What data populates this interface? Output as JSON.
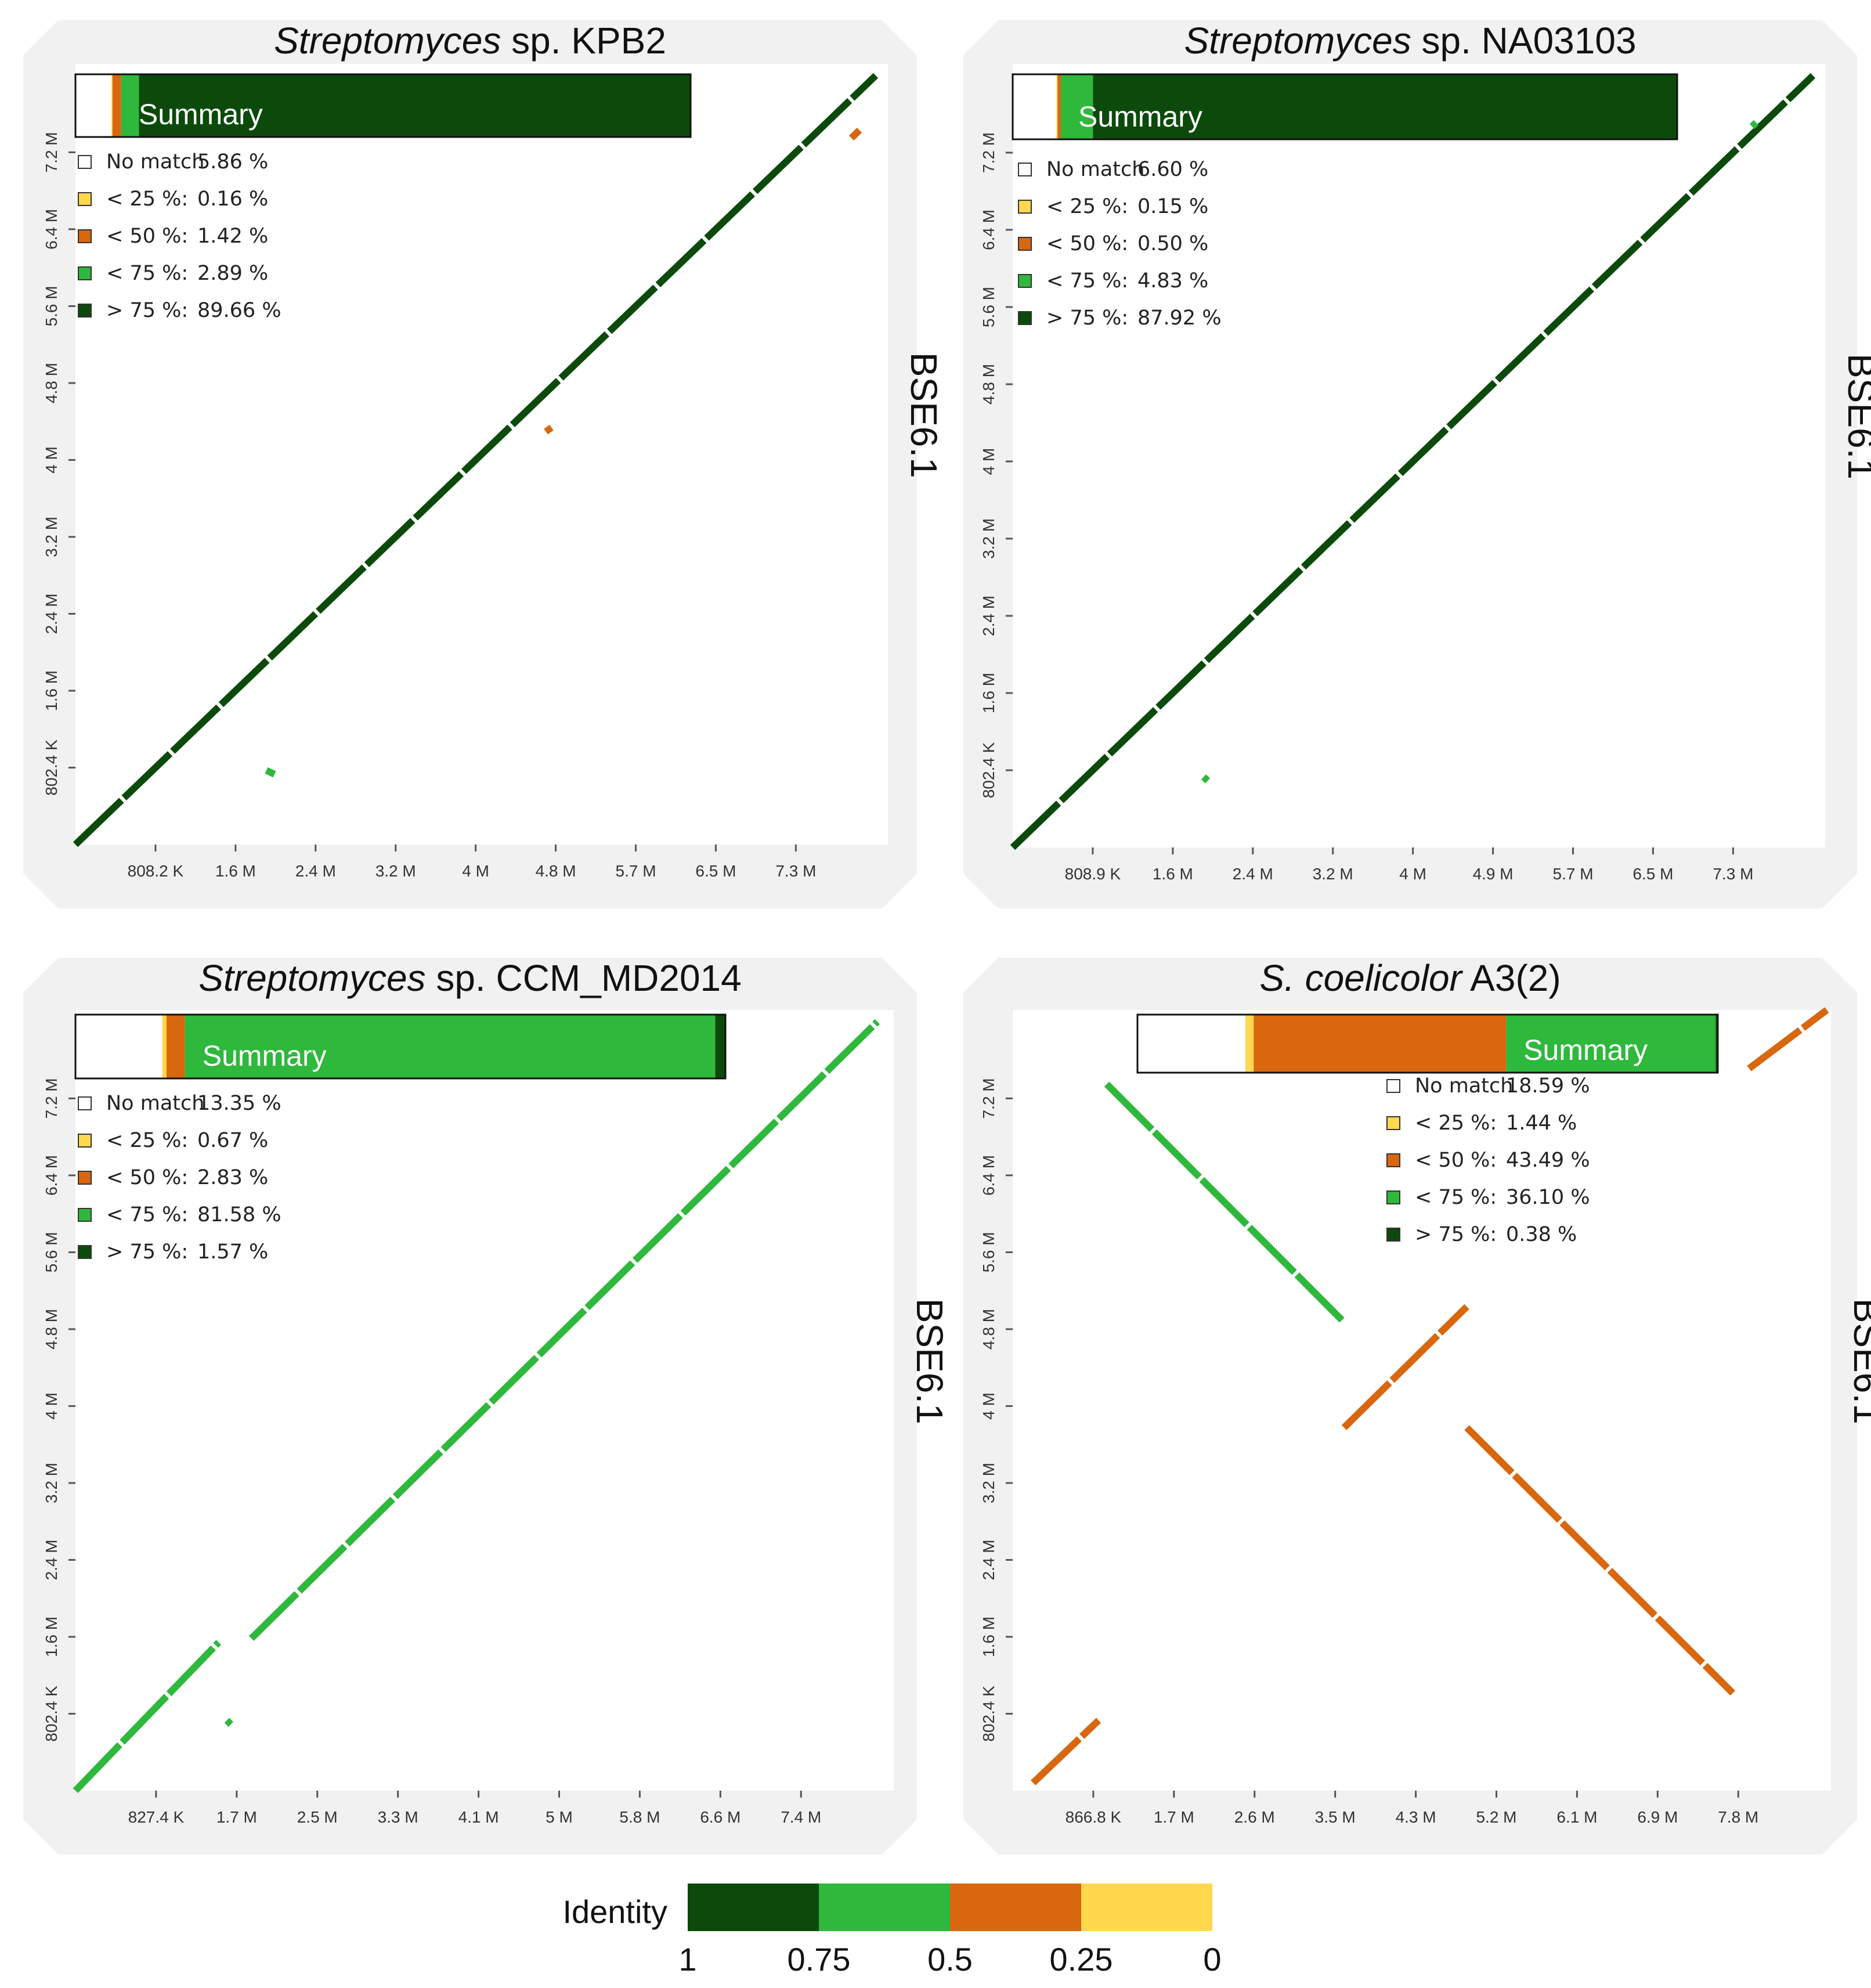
{
  "chart_data": [
    {
      "type": "dotplot",
      "title": "Streptomyces sp. KPB2",
      "title_italic": "Streptomyces",
      "title_rest": " sp. KPB2",
      "y_axis_label": "BSE6.1",
      "x_ticks": [
        "808.2 K",
        "1.6 M",
        "2.4 M",
        "3.2 M",
        "4 M",
        "4.8 M",
        "5.7 M",
        "6.5 M",
        "7.3 M"
      ],
      "y_ticks": [
        "802.4 K",
        "1.6 M",
        "2.4 M",
        "3.2 M",
        "4 M",
        "4.8 M",
        "5.6 M",
        "6.4 M",
        "7.2 M"
      ],
      "summary_label": "Summary",
      "summary": [
        {
          "label": "No match",
          "value": "5.86 %",
          "pct": 5.86
        },
        {
          "label": "< 25 %:",
          "value": "0.16 %",
          "pct": 0.16
        },
        {
          "label": "< 50 %:",
          "value": "1.42 %",
          "pct": 1.42
        },
        {
          "label": "< 75 %:",
          "value": "2.89 %",
          "pct": 2.89
        },
        {
          "label": "> 75 %:",
          "value": "89.66 %",
          "pct": 89.66
        }
      ],
      "segments": [
        {
          "x0": 0.0,
          "y0": 0.0,
          "x1": 0.985,
          "y1": 0.985,
          "identity": "> 75 %"
        },
        {
          "x0": 0.955,
          "y0": 0.905,
          "x1": 0.965,
          "y1": 0.915,
          "identity": "< 50 %"
        },
        {
          "x0": 0.58,
          "y0": 0.535,
          "x1": 0.585,
          "y1": 0.528,
          "identity": "< 50 %"
        },
        {
          "x0": 0.235,
          "y0": 0.095,
          "x1": 0.245,
          "y1": 0.09,
          "identity": "< 75 %"
        }
      ]
    },
    {
      "type": "dotplot",
      "title": "Streptomyces sp. NA03103",
      "title_italic": "Streptomyces",
      "title_rest": " sp. NA03103",
      "y_axis_label": "BSE6.1",
      "x_ticks": [
        "808.9 K",
        "1.6 M",
        "2.4 M",
        "3.2 M",
        "4 M",
        "4.9 M",
        "5.7 M",
        "6.5 M",
        "7.3 M"
      ],
      "y_ticks": [
        "802.4 K",
        "1.6 M",
        "2.4 M",
        "3.2 M",
        "4 M",
        "4.8 M",
        "5.6 M",
        "6.4 M",
        "7.2 M"
      ],
      "summary_label": "Summary",
      "summary": [
        {
          "label": "No match",
          "value": "6.60 %",
          "pct": 6.6
        },
        {
          "label": "< 25 %:",
          "value": "0.15 %",
          "pct": 0.15
        },
        {
          "label": "< 50 %:",
          "value": "0.50 %",
          "pct": 0.5
        },
        {
          "label": "< 75 %:",
          "value": "4.83 %",
          "pct": 4.83
        },
        {
          "label": "> 75 %:",
          "value": "87.92 %",
          "pct": 87.92
        }
      ],
      "segments": [
        {
          "x0": 0.0,
          "y0": 0.0,
          "x1": 0.985,
          "y1": 0.985,
          "identity": "> 75 %"
        },
        {
          "x0": 0.91,
          "y0": 0.92,
          "x1": 0.915,
          "y1": 0.925,
          "identity": "< 75 %"
        },
        {
          "x0": 0.235,
          "y0": 0.09,
          "x1": 0.24,
          "y1": 0.085,
          "identity": "< 75 %"
        }
      ]
    },
    {
      "type": "dotplot",
      "title": "Streptomyces sp. CCM_MD2014",
      "title_italic": "Streptomyces",
      "title_rest": " sp. CCM_MD2014",
      "y_axis_label": "BSE6.1",
      "x_ticks": [
        "827.4 K",
        "1.7 M",
        "2.5 M",
        "3.3 M",
        "4.1 M",
        "5 M",
        "5.8 M",
        "6.6 M",
        "7.4 M"
      ],
      "y_ticks": [
        "802.4 K",
        "1.6 M",
        "2.4 M",
        "3.2 M",
        "4 M",
        "4.8 M",
        "5.6 M",
        "6.4 M",
        "7.2 M"
      ],
      "summary_label": "Summary",
      "summary": [
        {
          "label": "No match",
          "value": "13.35 %",
          "pct": 13.35
        },
        {
          "label": "< 25 %:",
          "value": "0.67 %",
          "pct": 0.67
        },
        {
          "label": "< 50 %:",
          "value": "2.83 %",
          "pct": 2.83
        },
        {
          "label": "< 75 %:",
          "value": "81.58 %",
          "pct": 81.58
        },
        {
          "label": "> 75 %:",
          "value": "1.57 %",
          "pct": 1.57
        }
      ],
      "segments": [
        {
          "x0": 0.0,
          "y0": 0.0,
          "x1": 0.175,
          "y1": 0.19,
          "identity": "< 75 %"
        },
        {
          "x0": 0.215,
          "y0": 0.195,
          "x1": 0.98,
          "y1": 0.985,
          "identity": "< 75 %"
        },
        {
          "x0": 0.185,
          "y0": 0.09,
          "x1": 0.19,
          "y1": 0.085,
          "identity": "< 75 %"
        }
      ]
    },
    {
      "type": "dotplot",
      "title": "S. coelicolor A3(2)",
      "title_italic": "S. coelicolor",
      "title_rest": " A3(2)",
      "y_axis_label": "BSE6.1",
      "x_ticks": [
        "866.8 K",
        "1.7 M",
        "2.6 M",
        "3.5 M",
        "4.3 M",
        "5.2 M",
        "6.1 M",
        "6.9 M",
        "7.8 M"
      ],
      "y_ticks": [
        "802.4 K",
        "1.6 M",
        "2.4 M",
        "3.2 M",
        "4 M",
        "4.8 M",
        "5.6 M",
        "6.4 M",
        "7.2 M"
      ],
      "summary_label": "Summary",
      "summary": [
        {
          "label": "No match",
          "value": "18.59 %",
          "pct": 18.59
        },
        {
          "label": "< 25 %:",
          "value": "1.44 %",
          "pct": 1.44
        },
        {
          "label": "< 50 %:",
          "value": "43.49 %",
          "pct": 43.49
        },
        {
          "label": "< 75 %:",
          "value": "36.10 %",
          "pct": 36.1
        },
        {
          "label": "> 75 %:",
          "value": "0.38 %",
          "pct": 0.38
        }
      ],
      "segments": [
        {
          "x0": 0.115,
          "y0": 0.905,
          "x1": 0.405,
          "y1": 0.6,
          "identity": "< 75 %"
        },
        {
          "x0": 0.405,
          "y0": 0.465,
          "x1": 0.555,
          "y1": 0.62,
          "identity": "< 50 %"
        },
        {
          "x0": 0.555,
          "y0": 0.465,
          "x1": 0.88,
          "y1": 0.125,
          "identity": "< 50 %"
        },
        {
          "x0": 0.025,
          "y0": 0.01,
          "x1": 0.105,
          "y1": 0.09,
          "identity": "< 50 %"
        },
        {
          "x0": 0.9,
          "y0": 0.925,
          "x1": 0.995,
          "y1": 1.0,
          "identity": "< 50 %"
        }
      ]
    }
  ],
  "identity_scale": {
    "label": "Identity",
    "ticks": [
      "1",
      "0.75",
      "0.5",
      "0.25",
      "0"
    ],
    "colors": [
      "#0b4a0b",
      "#2eb83c",
      "#d8670f",
      "#ffd84d"
    ]
  },
  "colors": {
    "no_match": "#ffffff",
    "lt25": "#ffd84d",
    "lt50": "#d8670f",
    "lt75": "#2eb83c",
    "gt75": "#0b4a0b",
    "frame": "#f1f1f1"
  }
}
